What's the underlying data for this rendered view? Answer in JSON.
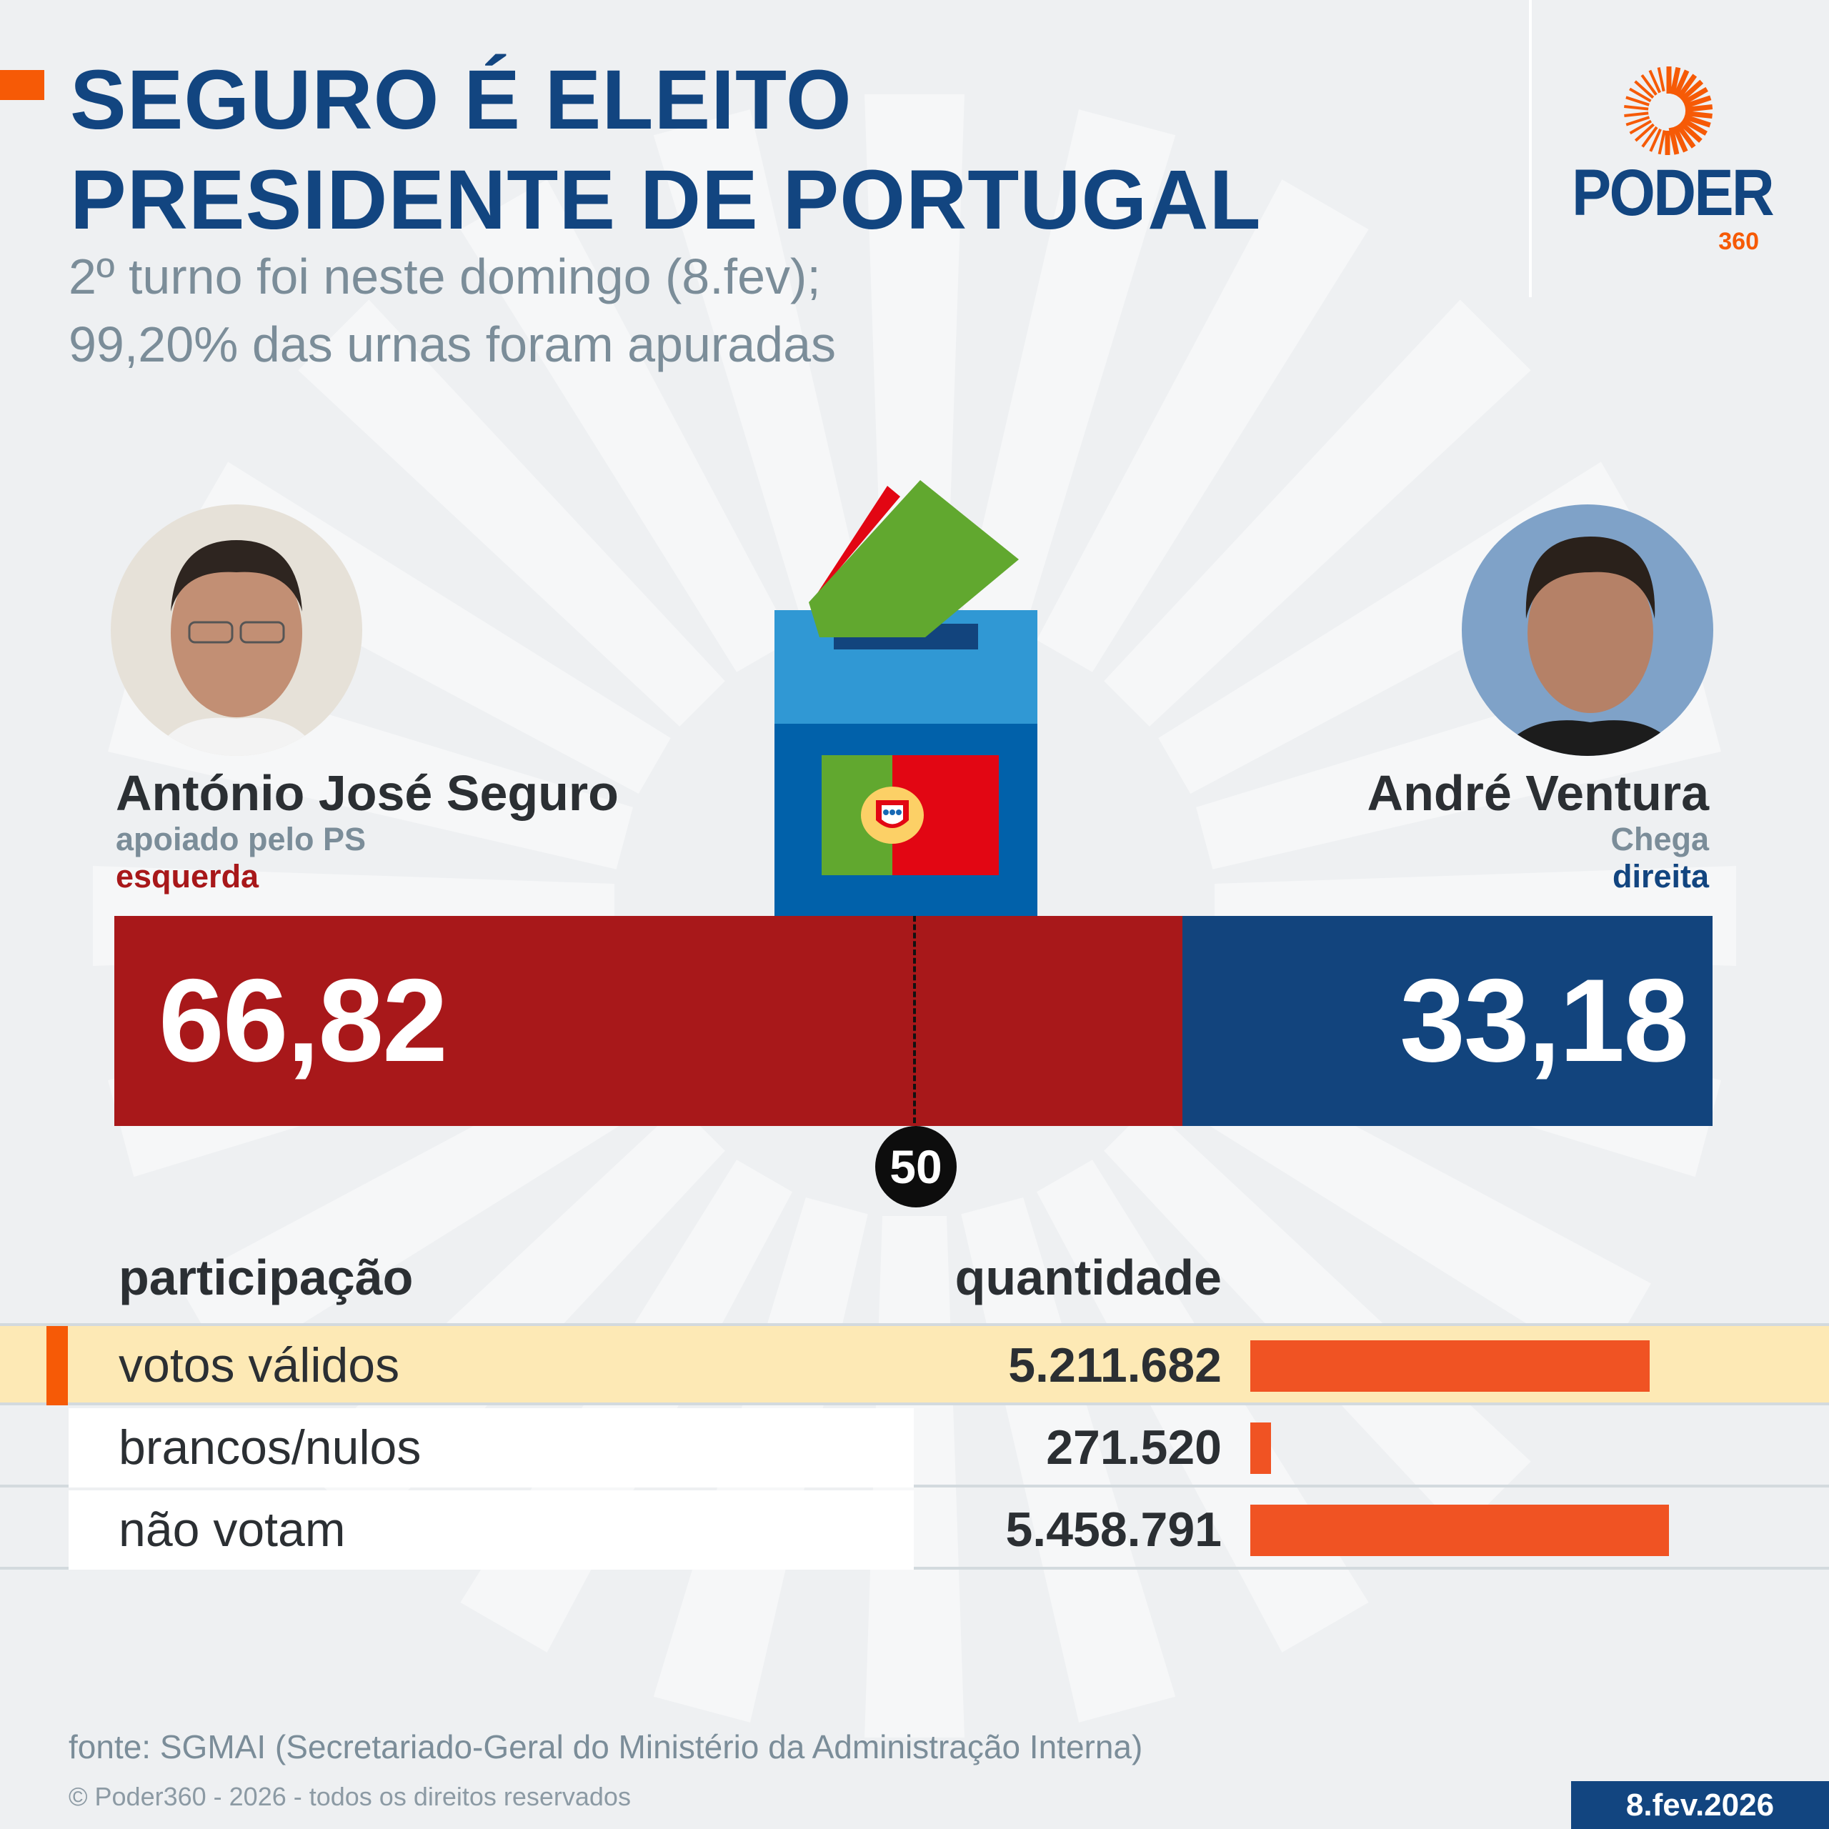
{
  "header": {
    "title_line1": "SEGURO É ELEITO",
    "title_line2": "PRESIDENTE DE PORTUGAL",
    "subtitle_line1": "2º turno foi neste domingo (8.fev);",
    "subtitle_line2": "99,20% das urnas foram apuradas"
  },
  "logo": {
    "text": "PODER",
    "sub": "360"
  },
  "candidates": [
    {
      "name": "António José Seguro",
      "support": "apoiado pelo PS",
      "side": "esquerda",
      "percent": "66,82",
      "value": 66.82,
      "color": "#a8181a"
    },
    {
      "name": "André Ventura",
      "support": "Chega",
      "side": "direita",
      "percent": "33,18",
      "value": 33.18,
      "color": "#12447d"
    }
  ],
  "majority_marker": "50",
  "table": {
    "col1": "participação",
    "col2": "quantidade",
    "rows": [
      {
        "label": "votos válidos",
        "value": "5.211.682",
        "count": 5211682
      },
      {
        "label": "brancos/nulos",
        "value": "271.520",
        "count": 271520
      },
      {
        "label": "não votam",
        "value": "5.458.791",
        "count": 5458791
      }
    ]
  },
  "footer": {
    "source": "fonte: SGMAI (Secretariado-Geral do Ministério da Administração Interna)",
    "copyright": "© Poder360 - 2026 - todos os direitos reservados",
    "date": "8.fev.2026"
  },
  "colors": {
    "orange": "#f05323",
    "navy": "#124580",
    "highlight": "#fde9b5"
  }
}
